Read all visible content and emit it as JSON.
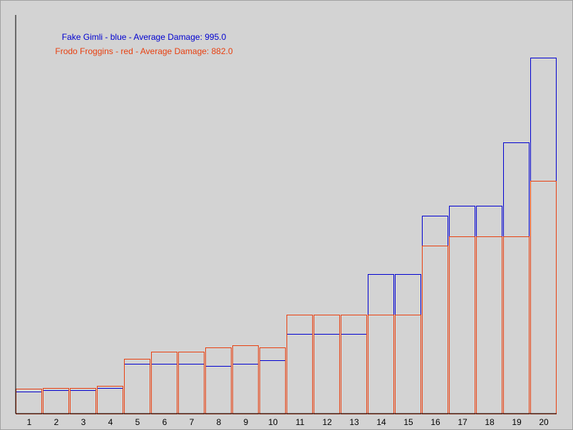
{
  "chart_data": {
    "type": "bar",
    "categories": [
      "1",
      "2",
      "3",
      "4",
      "5",
      "6",
      "7",
      "8",
      "9",
      "10",
      "11",
      "12",
      "13",
      "14",
      "15",
      "16",
      "17",
      "18",
      "19",
      "20"
    ],
    "series": [
      {
        "name": "Fake Gimli",
        "legend": "Fake Gimli - blue - Average Damage: 995.0",
        "color": "#0000d0",
        "values": [
          31,
          33,
          33,
          36,
          70,
          70,
          70,
          67,
          70,
          75,
          112,
          112,
          112,
          196,
          196,
          278,
          292,
          292,
          381,
          500
        ]
      },
      {
        "name": "Frodo Froggins",
        "legend": "Frodo Froggins - red - Average Damage: 882.0",
        "color": "#e84010",
        "values": [
          35,
          36,
          36,
          39,
          77,
          87,
          87,
          93,
          96,
          93,
          139,
          139,
          139,
          139,
          139,
          236,
          249,
          249,
          249,
          327
        ]
      }
    ],
    "ylim": [
      0,
      560
    ],
    "grid": false,
    "legend_position": "top-left",
    "overlay": true
  }
}
